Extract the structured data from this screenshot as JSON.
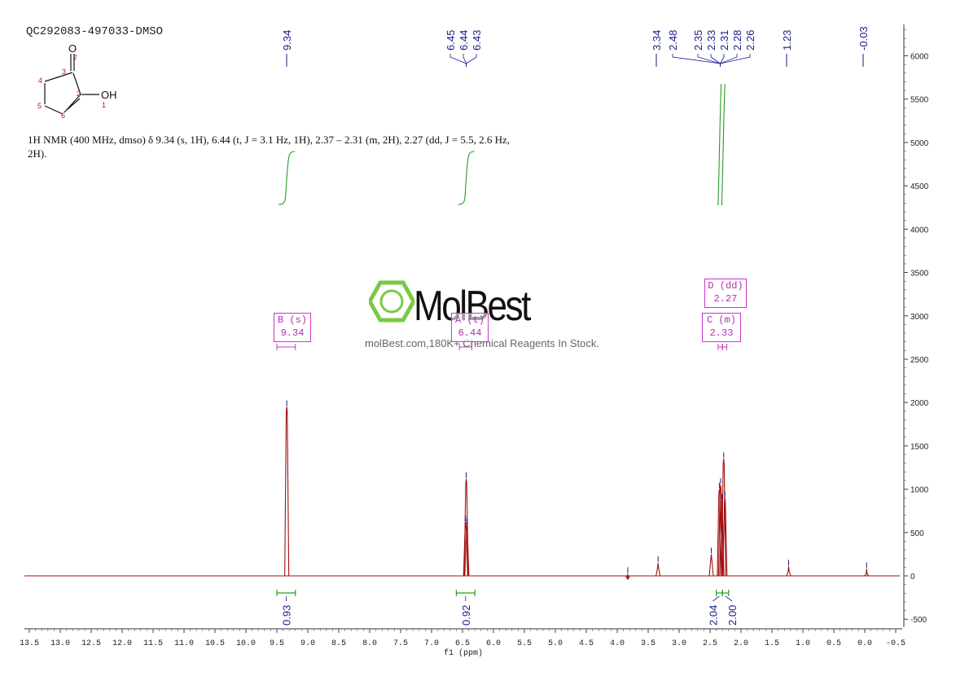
{
  "header": {
    "sample_id": "QC292083-497033-DMSO",
    "description": "1H NMR (400 MHz, dmso) δ 9.34 (s, 1H), 6.44 (t, J = 3.1 Hz, 1H), 2.37 – 2.31 (m, 2H), 2.27 (dd, J = 5.5, 2.6 Hz, 2H)."
  },
  "structure": {
    "atom_labels": [
      "1",
      "2",
      "3",
      "4",
      "5",
      "6",
      "7"
    ],
    "groups": [
      "O",
      "OH"
    ]
  },
  "watermark": {
    "logo": "MolBest",
    "text": "molBest.com,180K+ Chemical Reagents In Stock."
  },
  "colors": {
    "spectrum": "#a01010",
    "peak_labels": "#1a1a8c",
    "integrals": "#2a9a2a",
    "multiplets": "#cc33cc",
    "logo_green": "#7ac943"
  },
  "chart_data": {
    "type": "line",
    "xlabel": "f1 (ppm)",
    "xlim": [
      13.5,
      -0.5
    ],
    "ylim": [
      -600,
      6400
    ],
    "x_ticks": [
      "13.5",
      "13.0",
      "12.5",
      "12.0",
      "11.5",
      "11.0",
      "10.5",
      "10.0",
      "9.5",
      "9.0",
      "8.5",
      "8.0",
      "7.5",
      "7.0",
      "6.5",
      "6.0",
      "5.5",
      "5.0",
      "4.5",
      "4.0",
      "3.5",
      "3.0",
      "2.5",
      "2.0",
      "1.5",
      "1.0",
      "0.5",
      "0.0",
      "-0.5"
    ],
    "y_ticks": [
      "6000",
      "5500",
      "5000",
      "4500",
      "4000",
      "3500",
      "3000",
      "2500",
      "2000",
      "1500",
      "1000",
      "500",
      "0",
      "-500"
    ],
    "peaks": [
      {
        "ppm": 9.34,
        "height": 1950
      },
      {
        "ppm": 6.45,
        "height": 620
      },
      {
        "ppm": 6.44,
        "height": 1120
      },
      {
        "ppm": 6.43,
        "height": 580
      },
      {
        "ppm": 3.34,
        "height": 150
      },
      {
        "ppm": 2.48,
        "height": 250
      },
      {
        "ppm": 2.35,
        "height": 1000
      },
      {
        "ppm": 2.33,
        "height": 1050
      },
      {
        "ppm": 2.31,
        "height": 870
      },
      {
        "ppm": 2.28,
        "height": 1350
      },
      {
        "ppm": 2.26,
        "height": 900
      },
      {
        "ppm": 1.23,
        "height": 110
      },
      {
        "ppm": -0.03,
        "height": 80
      },
      {
        "ppm": 3.83,
        "height": 25
      }
    ],
    "peak_labels": [
      "9.34",
      "6.45",
      "6.44",
      "6.43",
      "3.34",
      "2.48",
      "2.35",
      "2.33",
      "2.31",
      "2.28",
      "2.26",
      "1.23",
      "-0.03"
    ],
    "integrals": [
      {
        "from": 9.5,
        "to": 9.2,
        "value": "0.93"
      },
      {
        "from": 6.6,
        "to": 6.3,
        "value": "0.92"
      },
      {
        "from": 2.4,
        "to": 2.3,
        "value": "2.04"
      },
      {
        "from": 2.3,
        "to": 2.2,
        "value": "2.00"
      }
    ],
    "multiplets": [
      {
        "label": "B (s)",
        "shift": "9.34"
      },
      {
        "label": "A (t)",
        "shift": "6.44"
      },
      {
        "label": "C (m)",
        "shift": "2.33"
      },
      {
        "label": "D (dd)",
        "shift": "2.27"
      }
    ]
  }
}
